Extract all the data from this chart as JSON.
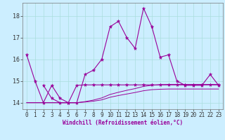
{
  "title": "",
  "xlabel": "Windchill (Refroidissement éolien,°C)",
  "background_color": "#cceeff",
  "grid_color": "#aadddd",
  "line_color": "#990099",
  "xlim": [
    -0.5,
    23.5
  ],
  "ylim": [
    13.7,
    18.6
  ],
  "yticks": [
    14,
    15,
    16,
    17,
    18
  ],
  "xticks": [
    0,
    1,
    2,
    3,
    4,
    5,
    6,
    7,
    8,
    9,
    10,
    11,
    12,
    13,
    14,
    15,
    16,
    17,
    18,
    19,
    20,
    21,
    22,
    23
  ],
  "series1_x": [
    0,
    1,
    2,
    3,
    4,
    5,
    6,
    7,
    8,
    9,
    10,
    11,
    12,
    13,
    14,
    15,
    16,
    17,
    18,
    19,
    20,
    21,
    22,
    23
  ],
  "series1_y": [
    16.2,
    15.0,
    14.0,
    14.8,
    14.2,
    14.0,
    14.0,
    15.3,
    15.5,
    16.0,
    17.5,
    17.75,
    17.0,
    16.5,
    18.35,
    17.5,
    16.1,
    16.2,
    15.0,
    14.8,
    14.8,
    14.8,
    15.3,
    14.8
  ],
  "series2_x": [
    2,
    3,
    4,
    5,
    6,
    7,
    8,
    9,
    10,
    11,
    12,
    13,
    14,
    15,
    16,
    17,
    18,
    19,
    20,
    21,
    22,
    23
  ],
  "series2_y": [
    14.8,
    14.2,
    14.0,
    14.0,
    14.8,
    14.82,
    14.82,
    14.82,
    14.82,
    14.82,
    14.82,
    14.82,
    14.82,
    14.82,
    14.82,
    14.82,
    14.82,
    14.82,
    14.82,
    14.82,
    14.82,
    14.82
  ],
  "series3_x": [
    0,
    1,
    2,
    3,
    4,
    5,
    6,
    7,
    8,
    9,
    10,
    11,
    12,
    13,
    14,
    15,
    16,
    17,
    18,
    19,
    20,
    21,
    22,
    23
  ],
  "series3_y": [
    14.0,
    14.0,
    14.0,
    14.0,
    14.0,
    14.0,
    14.0,
    14.05,
    14.12,
    14.22,
    14.38,
    14.48,
    14.57,
    14.65,
    14.75,
    14.8,
    14.83,
    14.84,
    14.84,
    14.84,
    14.84,
    14.84,
    14.84,
    14.84
  ],
  "series4_x": [
    0,
    1,
    2,
    3,
    4,
    5,
    6,
    7,
    8,
    9,
    10,
    11,
    12,
    13,
    14,
    15,
    16,
    17,
    18,
    19,
    20,
    21,
    22,
    23
  ],
  "series4_y": [
    14.0,
    14.0,
    14.0,
    14.0,
    14.0,
    14.0,
    14.0,
    14.03,
    14.07,
    14.13,
    14.25,
    14.33,
    14.4,
    14.47,
    14.55,
    14.6,
    14.62,
    14.63,
    14.63,
    14.63,
    14.63,
    14.63,
    14.63,
    14.63
  ],
  "figsize": [
    3.2,
    2.0
  ],
  "dpi": 100
}
